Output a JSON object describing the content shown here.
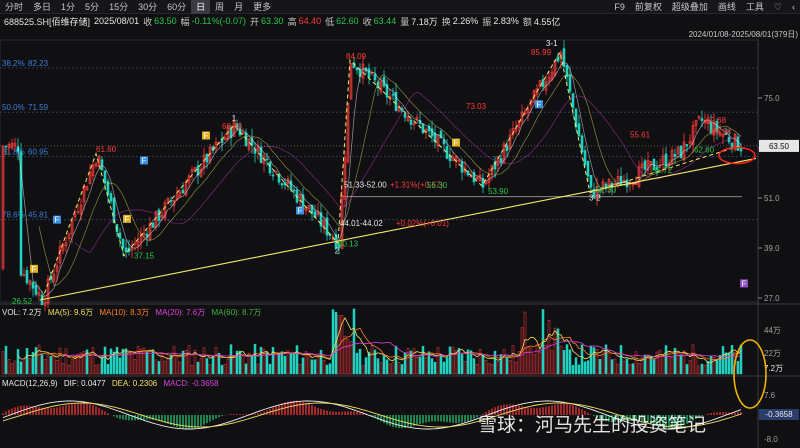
{
  "toolbar": {
    "periods": [
      "分时",
      "多日",
      "1分",
      "5分",
      "15分",
      "30分",
      "60分",
      "日",
      "周",
      "月",
      "更多"
    ],
    "active_period": "日",
    "right": [
      "F9",
      "前复权",
      "超级叠加",
      "画线",
      "工具",
      "♡",
      "‹"
    ]
  },
  "quote": {
    "code": "688525.SH[佰维存储]",
    "date": "2025/08/01",
    "close_label": "收",
    "close": "63.50",
    "change_label": "幅",
    "change": "-0.11%(-0.07)",
    "open_label": "开",
    "open": "63.30",
    "high_label": "高",
    "high": "64.40",
    "low_label": "低",
    "low": "62.60",
    "end_label": "收",
    "end": "63.44",
    "vol_label": "量",
    "vol": "7.18万",
    "turnover_label": "换",
    "turnover": "2.26%",
    "amp_label": "振",
    "amp": "2.83%",
    "amount_label": "额",
    "amount": "4.55亿"
  },
  "range_text": "2024/01/08-2025/08/01(379日)",
  "price_axis": [
    "75.0",
    "63.0",
    "51.0",
    "39.0",
    "27.0"
  ],
  "current_price_tag": "63.50",
  "fib_levels": [
    {
      "label": "38.2%",
      "value": "82.23"
    },
    {
      "label": "50.0%",
      "value": "71.59"
    },
    {
      "label": "61.8%",
      "value": "60.95"
    },
    {
      "label": "78.6%",
      "value": "45.81"
    }
  ],
  "annotations": {
    "p_26_52": "26.52",
    "p_61_60": "61.60",
    "p_37_15": "37.15",
    "p_68_49": "68.49",
    "n1": "1",
    "p_40_13": "40.13",
    "n2": "2",
    "p_44": "44.01-44.02",
    "p_44_pct": "+0.02%(+0.01)",
    "p_84_09": "84.09",
    "p_51": "51.33-52.00",
    "p_51_pct": "+1.31%(+0.67)",
    "p_55_30": "55.30",
    "p_73_03": "73.03",
    "p_53_90": "53.90",
    "p_85_99": "85.99",
    "n31": "3-1",
    "p_52_30": "52.30",
    "n32": "3-2",
    "p_55_61": "55.61",
    "p_55_72": "55.72",
    "p_69_68": "69.68",
    "p_66_98": "66.98",
    "p_62_60": "62.60",
    "badge_f": "F"
  },
  "vol_legend": {
    "vol": "VOL: 7.2万",
    "ma5": "MA(5): 9.6万",
    "ma10": "MA(10): 8.3万",
    "ma20": "MA(20): 7.6万",
    "ma60": "MA(60): 8.7万"
  },
  "vol_axis": [
    "44万",
    "22万"
  ],
  "vol_tag": "7.2万",
  "macd_legend": {
    "name": "MACD(12,26,9)",
    "dif": "DIF: 0.0477",
    "dea": "DEA: 0.2306",
    "macd": "MACD: -0.3658"
  },
  "macd_axis": [
    "7.6",
    "-8.0"
  ],
  "macd_tag": "-0.3658",
  "watermark": "雪球：河马先生的投资笔记",
  "colors": {
    "up": "#ff3b3b",
    "down": "#1fd1c0",
    "zigzag": "#f5e96a",
    "fib": "#3b7fd8",
    "accent_circle": "#ff2020",
    "ring": "#f0b400"
  },
  "chart_data": {
    "type": "candlestick",
    "title": "688525.SH[佰维存储]",
    "period": "2024/01/08-2025/08/01",
    "ylim": [
      24,
      92
    ],
    "zigzag": [
      26.52,
      61.6,
      37.15,
      68.49,
      40.13,
      84.09,
      53.9,
      85.99,
      52.3,
      63.5
    ],
    "trendline": {
      "from": 26.52,
      "to": 60.5
    },
    "support_level": 51.33,
    "current_close": 63.5,
    "macd": {
      "dif": 0.0477,
      "dea": 0.2306,
      "macd": -0.3658
    }
  }
}
